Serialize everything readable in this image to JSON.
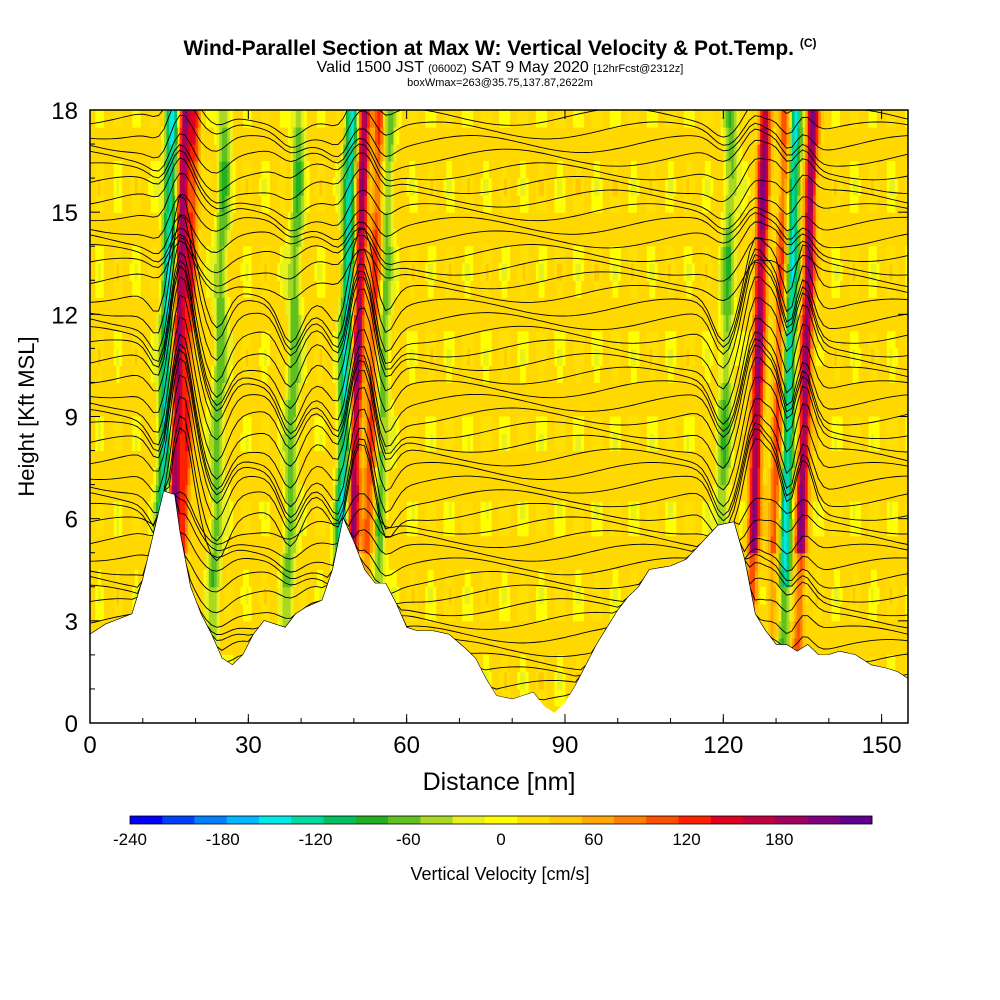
{
  "title": "Wind-Parallel Section at Max W: Vertical Velocity & Pot.Temp.",
  "copyright_mark": "(C)",
  "subtitle": {
    "valid": "Valid 1500 JST",
    "utc": "(0600Z)",
    "date": "SAT 9 May 2020",
    "forecast": "[12hrFcst@2312z]"
  },
  "box_info": "boxWmax=263@35.75,137.87,2622m",
  "chart_data": {
    "type": "heatmap",
    "xlabel": "Distance [nm]",
    "ylabel": "Height [Kft MSL]",
    "xlim": [
      0,
      155
    ],
    "ylim": [
      0,
      18
    ],
    "x_ticks": [
      0,
      30,
      60,
      90,
      120,
      150
    ],
    "y_ticks": [
      0,
      3,
      6,
      9,
      12,
      15,
      18
    ],
    "colorbar": {
      "label": "Vertical Velocity [cm/s]",
      "range": [
        -240,
        240
      ],
      "ticks": [
        -240,
        -180,
        -120,
        -60,
        0,
        60,
        120,
        180
      ],
      "colors": [
        "#0000ff",
        "#0040ff",
        "#0080ff",
        "#00b8ff",
        "#00e8e8",
        "#00d8a0",
        "#00c060",
        "#20b020",
        "#60c020",
        "#a8d820",
        "#e8f020",
        "#ffff00",
        "#ffe000",
        "#ffc800",
        "#ffa800",
        "#ff8000",
        "#ff5000",
        "#ff2000",
        "#e00020",
        "#c00040",
        "#a00060",
        "#800080",
        "#600090"
      ]
    },
    "terrain_kft": [
      [
        0,
        2.6
      ],
      [
        3,
        2.9
      ],
      [
        8,
        3.2
      ],
      [
        10,
        4.2
      ],
      [
        12,
        5.5
      ],
      [
        14,
        6.8
      ],
      [
        16,
        6.7
      ],
      [
        17,
        5.6
      ],
      [
        19,
        4.0
      ],
      [
        21,
        3.2
      ],
      [
        23,
        2.6
      ],
      [
        25,
        1.9
      ],
      [
        27,
        1.7
      ],
      [
        29,
        2.0
      ],
      [
        31,
        2.6
      ],
      [
        33,
        3.0
      ],
      [
        35,
        2.9
      ],
      [
        37,
        2.8
      ],
      [
        39,
        3.2
      ],
      [
        41,
        3.4
      ],
      [
        44,
        3.6
      ],
      [
        46,
        4.5
      ],
      [
        48,
        6.0
      ],
      [
        50,
        5.3
      ],
      [
        52,
        4.5
      ],
      [
        54,
        4.1
      ],
      [
        56,
        4.1
      ],
      [
        58,
        3.5
      ],
      [
        60,
        2.8
      ],
      [
        62,
        2.7
      ],
      [
        65,
        2.7
      ],
      [
        68,
        2.6
      ],
      [
        71,
        2.2
      ],
      [
        73,
        1.9
      ],
      [
        75,
        1.3
      ],
      [
        77,
        0.8
      ],
      [
        80,
        0.7
      ],
      [
        82,
        0.8
      ],
      [
        84,
        0.9
      ],
      [
        86,
        0.5
      ],
      [
        88,
        0.3
      ],
      [
        90,
        0.6
      ],
      [
        92,
        1.1
      ],
      [
        94,
        1.7
      ],
      [
        96,
        2.3
      ],
      [
        98,
        2.8
      ],
      [
        100,
        3.3
      ],
      [
        102,
        3.7
      ],
      [
        104,
        4.0
      ],
      [
        106,
        4.5
      ],
      [
        110,
        4.6
      ],
      [
        113,
        4.8
      ],
      [
        116,
        5.3
      ],
      [
        119,
        5.8
      ],
      [
        122,
        5.9
      ],
      [
        124,
        4.8
      ],
      [
        126,
        3.2
      ],
      [
        128,
        2.7
      ],
      [
        130,
        2.3
      ],
      [
        132,
        2.3
      ],
      [
        134,
        2.1
      ],
      [
        136,
        2.3
      ],
      [
        138,
        2.0
      ],
      [
        140,
        2.0
      ],
      [
        142,
        2.1
      ],
      [
        145,
        2.0
      ],
      [
        148,
        1.7
      ],
      [
        151,
        1.6
      ],
      [
        153,
        1.5
      ],
      [
        155,
        1.3
      ]
    ],
    "updraft_columns_nm": [
      16,
      18,
      50,
      53,
      126,
      130,
      135
    ],
    "downdraft_columns_nm": [
      14,
      24,
      38,
      48,
      55,
      120,
      132
    ]
  }
}
